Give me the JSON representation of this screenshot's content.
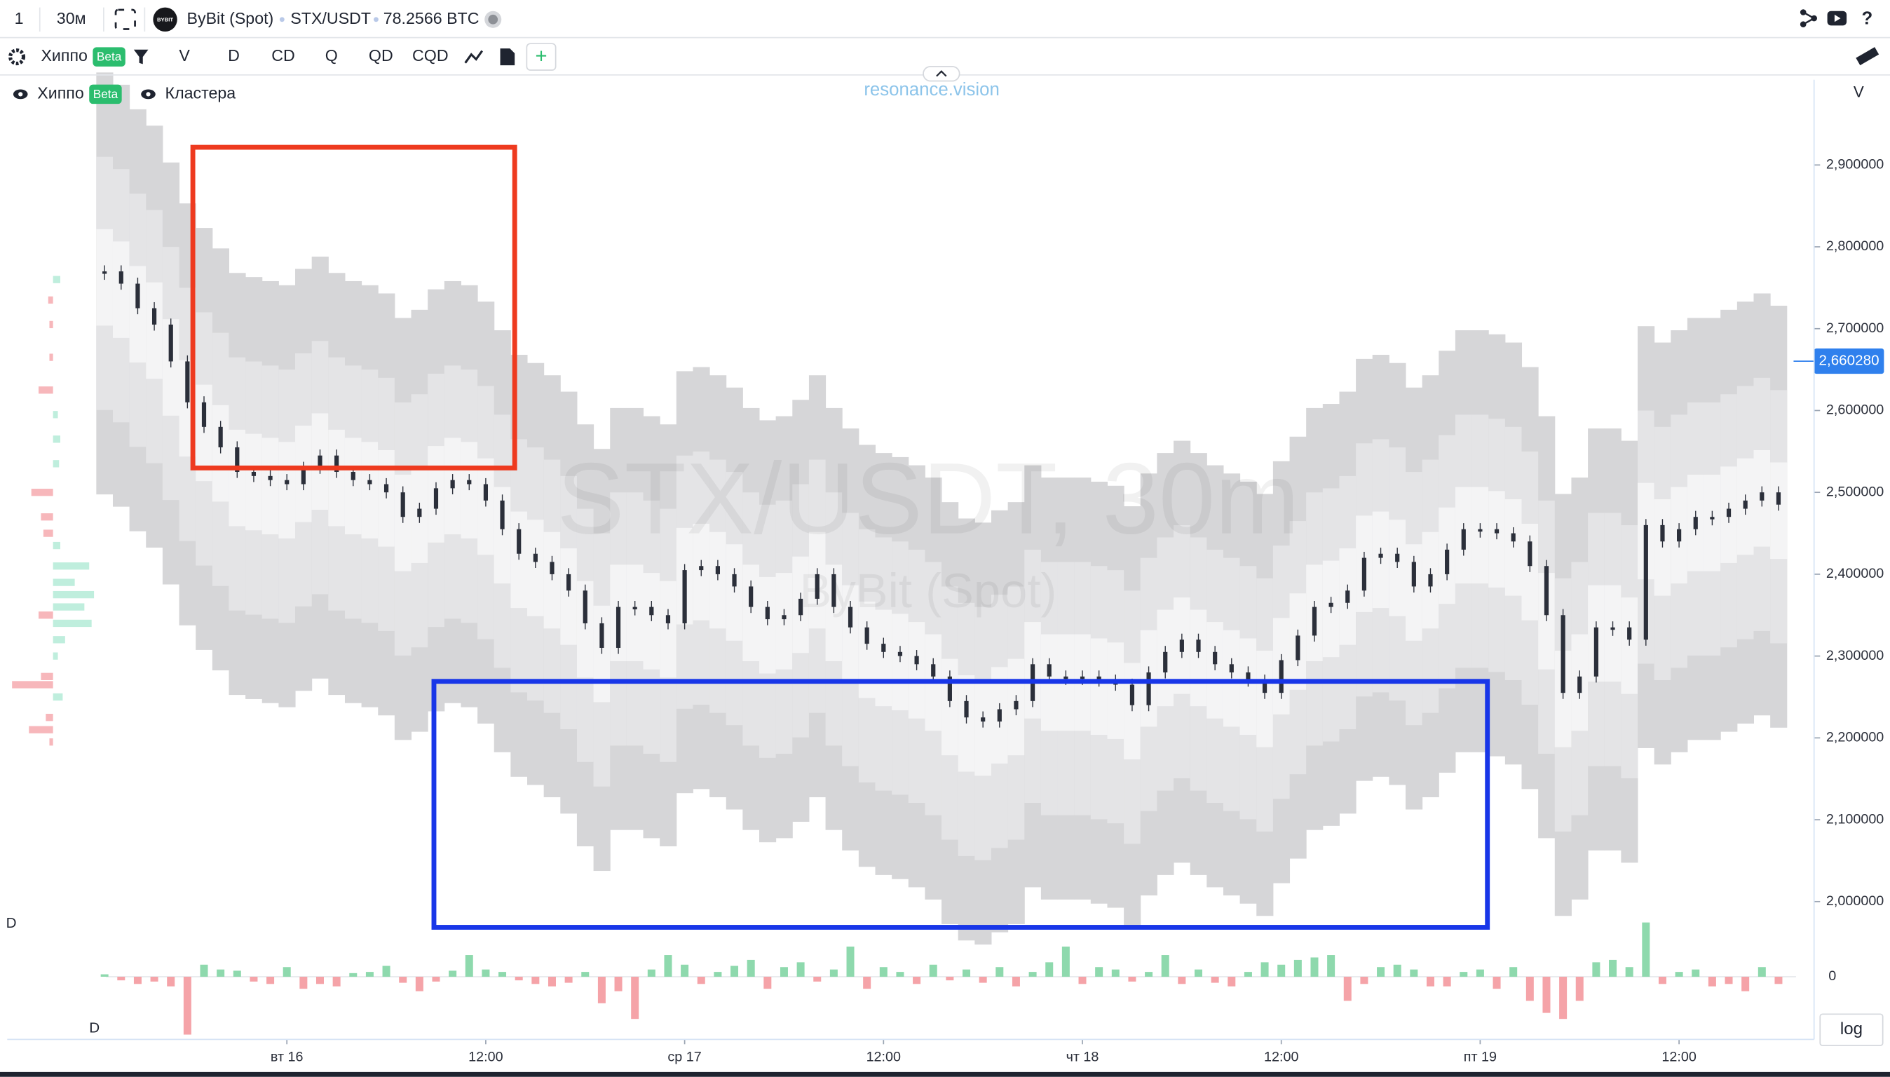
{
  "toolbar": {
    "count": "1",
    "interval": "30м",
    "exchange_logo": "BYBIT",
    "exchange": "ByBit (Spot)",
    "symbol": "STX/USDT",
    "volume": "78.2566 BTC"
  },
  "indicators_bar": {
    "name": "Хиппо",
    "badge": "Beta",
    "buttons": [
      "V",
      "D",
      "CD",
      "Q",
      "QD",
      "CQD"
    ],
    "add": "+"
  },
  "legend": {
    "items": [
      {
        "name": "Хиппо",
        "badge": "Beta"
      },
      {
        "name": "Кластера"
      }
    ]
  },
  "brand": "resonance.vision",
  "chart_data": {
    "type": "candlestick",
    "watermark": "STX/USDT, 30m",
    "watermark_sub": "ByBit (Spot)",
    "axis_label": "V",
    "scale_button": "log",
    "pane_labels": [
      "D",
      "D"
    ],
    "categories": [
      null,
      null,
      null,
      null,
      null,
      null,
      null,
      null,
      null,
      null,
      null,
      "вт 16",
      null,
      null,
      null,
      null,
      null,
      null,
      null,
      null,
      null,
      null,
      null,
      "12:00",
      null,
      null,
      null,
      null,
      null,
      null,
      null,
      null,
      null,
      null,
      null,
      "ср 17",
      null,
      null,
      null,
      null,
      null,
      null,
      null,
      null,
      null,
      null,
      null,
      "12:00",
      null,
      null,
      null,
      null,
      null,
      null,
      null,
      null,
      null,
      null,
      null,
      "чт 18",
      null,
      null,
      null,
      null,
      null,
      null,
      null,
      null,
      null,
      null,
      null,
      "12:00",
      null,
      null,
      null,
      null,
      null,
      null,
      null,
      null,
      null,
      null,
      null,
      "пт 19",
      null,
      null,
      null,
      null,
      null,
      null,
      null,
      null,
      null,
      null,
      null,
      "12:00",
      null,
      null,
      null,
      null,
      null,
      null
    ],
    "values": [
      2770000,
      2755000,
      2725000,
      2705000,
      2660000,
      2610000,
      2580000,
      2555000,
      2525000,
      2520000,
      2515000,
      2510000,
      2530000,
      2545000,
      2525000,
      2515000,
      2510000,
      2500000,
      2470000,
      2480000,
      2505000,
      2515000,
      2510000,
      2490000,
      2455000,
      2425000,
      2415000,
      2400000,
      2380000,
      2340000,
      2310000,
      2360000,
      2360000,
      2350000,
      2340000,
      2405000,
      2410000,
      2400000,
      2385000,
      2360000,
      2345000,
      2350000,
      2370000,
      2400000,
      2360000,
      2335000,
      2315000,
      2305000,
      2300000,
      2290000,
      2275000,
      2245000,
      2225000,
      2220000,
      2235000,
      2245000,
      2290000,
      2275000,
      2275000,
      2275000,
      2270000,
      2265000,
      2240000,
      2280000,
      2305000,
      2320000,
      2305000,
      2290000,
      2280000,
      2270000,
      2255000,
      2295000,
      2325000,
      2360000,
      2365000,
      2380000,
      2420000,
      2425000,
      2415000,
      2385000,
      2400000,
      2430000,
      2455000,
      2455000,
      2450000,
      2440000,
      2410000,
      2350000,
      2255000,
      2275000,
      2335000,
      2335000,
      2320000,
      2460000,
      2440000,
      2455000,
      2470000,
      2470000,
      2480000,
      2490000,
      2500000,
      2485000
    ],
    "color": "#2b2f3a",
    "band_colors": [
      "#d6d6d8",
      "#e4e4e6",
      "#f4f4f5"
    ],
    "ylim": [
      1945000,
      3010000
    ],
    "yticks": [
      {
        "value": 2000000,
        "label": "2,000000"
      },
      {
        "value": 2100000,
        "label": "2,100000"
      },
      {
        "value": 2200000,
        "label": "2,200000"
      },
      {
        "value": 2300000,
        "label": "2,300000"
      },
      {
        "value": 2400000,
        "label": "2,400000"
      },
      {
        "value": 2500000,
        "label": "2,500000"
      },
      {
        "value": 2600000,
        "label": "2,600000"
      },
      {
        "value": 2700000,
        "label": "2,700000"
      },
      {
        "value": 2800000,
        "label": "2,800000"
      },
      {
        "value": 2900000,
        "label": "2,900000"
      }
    ],
    "last_price": {
      "value": 2660280,
      "label": "2,660280"
    },
    "last_price_color": "#2f80ed",
    "profile": {
      "prices": [
        2760000,
        2735000,
        2705000,
        2665000,
        2625000,
        2595000,
        2565000,
        2535000,
        2500000,
        2470000,
        2450000,
        2435000,
        2410000,
        2390000,
        2375000,
        2360000,
        2350000,
        2340000,
        2320000,
        2300000,
        2275000,
        2265000,
        2250000,
        2225000,
        2210000,
        2195000
      ],
      "values": [
        6,
        -4,
        -3,
        -3,
        -12,
        4,
        6,
        5,
        -18,
        -10,
        -8,
        6,
        30,
        18,
        34,
        26,
        -12,
        32,
        10,
        4,
        -10,
        -34,
        8,
        -6,
        -20,
        -3
      ],
      "buy_color": "#bfeedd",
      "sell_color": "#f7b7bb"
    },
    "delta": {
      "values": [
        2,
        -3,
        -6,
        -4,
        -8,
        -48,
        10,
        6,
        5,
        -4,
        -6,
        8,
        -10,
        -6,
        -8,
        3,
        4,
        9,
        -5,
        -12,
        -4,
        5,
        18,
        6,
        4,
        -3,
        -6,
        -8,
        -5,
        4,
        -22,
        -12,
        -35,
        6,
        18,
        10,
        -6,
        4,
        9,
        14,
        -10,
        8,
        12,
        -4,
        6,
        25,
        -10,
        8,
        4,
        -6,
        10,
        -3,
        6,
        -5,
        8,
        -8,
        4,
        12,
        25,
        -6,
        8,
        6,
        -4,
        4,
        18,
        -6,
        6,
        -5,
        -8,
        4,
        12,
        10,
        14,
        16,
        18,
        -20,
        -6,
        8,
        10,
        6,
        -8,
        -8,
        4,
        6,
        -10,
        8,
        -20,
        -30,
        -35,
        -20,
        12,
        14,
        8,
        45,
        -6,
        4,
        6,
        -8,
        -6,
        -12,
        8,
        -6
      ],
      "ylim": [
        -50,
        50
      ],
      "yticks": [
        0
      ],
      "up_color": "#8ed9ad",
      "down_color": "#f5a3a8"
    }
  }
}
